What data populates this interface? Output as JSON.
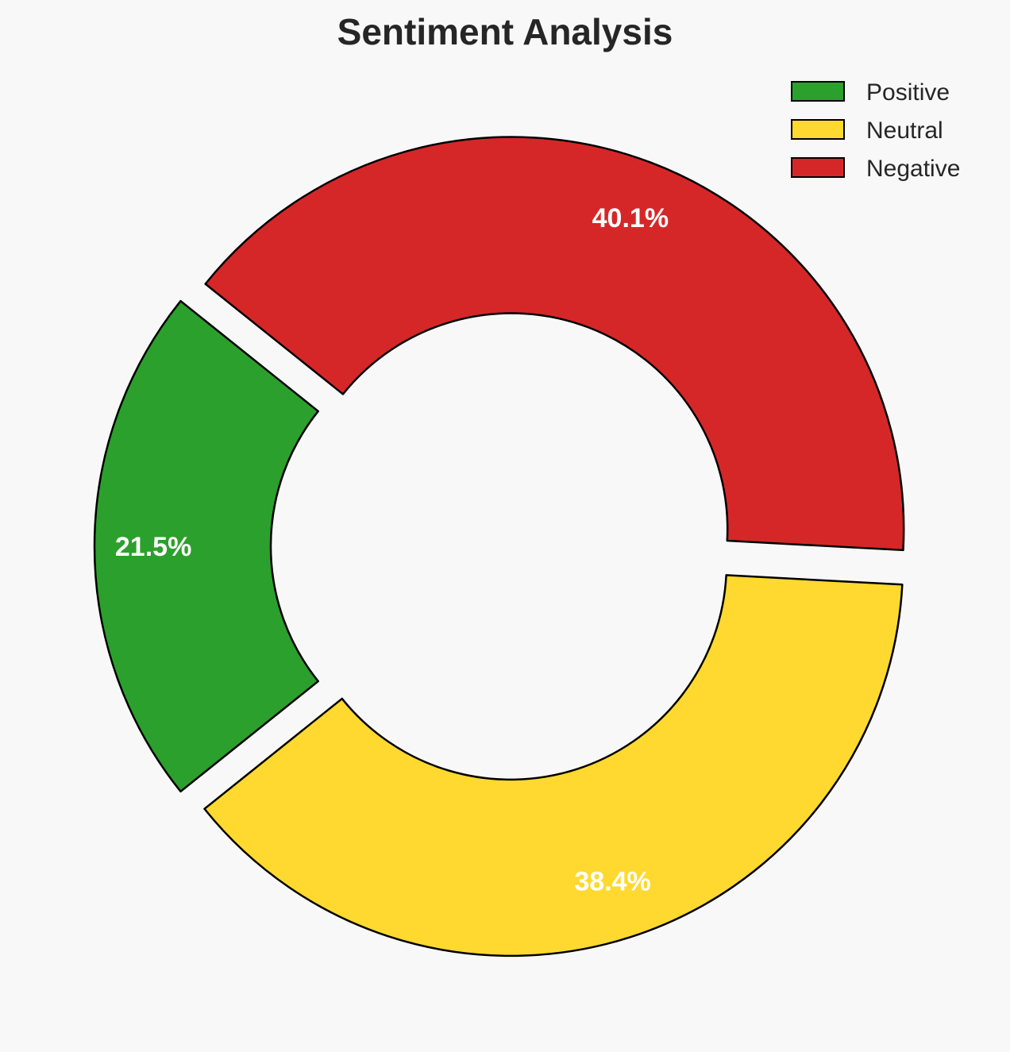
{
  "chart_data": {
    "type": "pie",
    "variant": "donut",
    "title": "Sentiment Analysis",
    "categories": [
      "Positive",
      "Neutral",
      "Negative"
    ],
    "values": [
      21.5,
      38.4,
      40.1
    ],
    "labels": [
      "21.5%",
      "38.4%",
      "40.1%"
    ],
    "colors": [
      "#2ca02c",
      "#ffd92f",
      "#d62728"
    ],
    "exploded": true,
    "legend": {
      "position": "top-right",
      "entries": [
        "Positive",
        "Neutral",
        "Negative"
      ]
    }
  }
}
